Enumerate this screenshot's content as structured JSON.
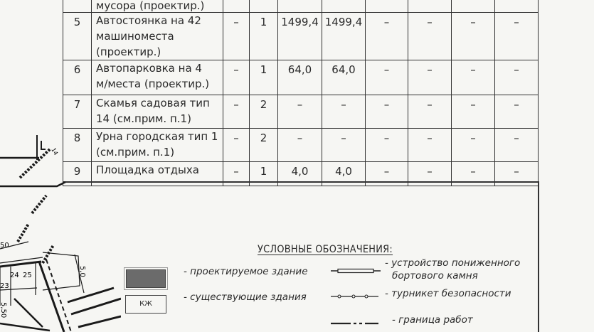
{
  "table": {
    "top_partial_row": {
      "name": "мусора (проектир.)"
    },
    "rows": [
      {
        "num": "5",
        "name_lines": [
          "Автостоянка на 42",
          "машиноместа",
          "(проектир.)"
        ],
        "c3": "–",
        "c4": "1",
        "c5": "1499,4",
        "c6": "1499,4",
        "c7": "–",
        "c8": "–",
        "c9": "–",
        "c10": "–"
      },
      {
        "num": "6",
        "name_lines": [
          "Автопарковка на 4",
          "м/места (проектир.)"
        ],
        "c3": "–",
        "c4": "1",
        "c5": "64,0",
        "c6": "64,0",
        "c7": "–",
        "c8": "–",
        "c9": "–",
        "c10": "–"
      },
      {
        "num": "7",
        "name_lines": [
          "Скамья садовая тип",
          "14 (см.прим. п.1)"
        ],
        "c3": "–",
        "c4": "2",
        "c5": "–",
        "c6": "–",
        "c7": "–",
        "c8": "–",
        "c9": "–",
        "c10": "–"
      },
      {
        "num": "8",
        "name_lines": [
          "Урна городская тип 1",
          "(см.прим. п.1)"
        ],
        "c3": "–",
        "c4": "2",
        "c5": "–",
        "c6": "–",
        "c7": "–",
        "c8": "–",
        "c9": "–",
        "c10": "–"
      },
      {
        "num": "9",
        "name_lines": [
          "Площадка отдыха"
        ],
        "c3": "–",
        "c4": "1",
        "c5": "4,0",
        "c6": "4,0",
        "c7": "–",
        "c8": "–",
        "c9": "–",
        "c10": "–"
      }
    ]
  },
  "legend": {
    "title": "УСЛОВНЫЕ ОБОЗНАЧЕНИЯ:",
    "items": [
      {
        "symbol": "dark-filled-box",
        "label": "- проектируемое здание"
      },
      {
        "symbol": "box-kzh",
        "symbol_text": "КЖ",
        "label": "- существующие здания"
      },
      {
        "symbol": "double-line",
        "label_lines": [
          "- устройство пониженного",
          "бортового камня"
        ]
      },
      {
        "symbol": "line-with-circles",
        "label": "- турникет безопасности"
      },
      {
        "symbol": "dash-dot-line",
        "label": "- граница работ"
      }
    ]
  },
  "map_labels": [
    "50",
    "24",
    "25",
    "23",
    "5,0",
    "5,50",
    "14"
  ]
}
